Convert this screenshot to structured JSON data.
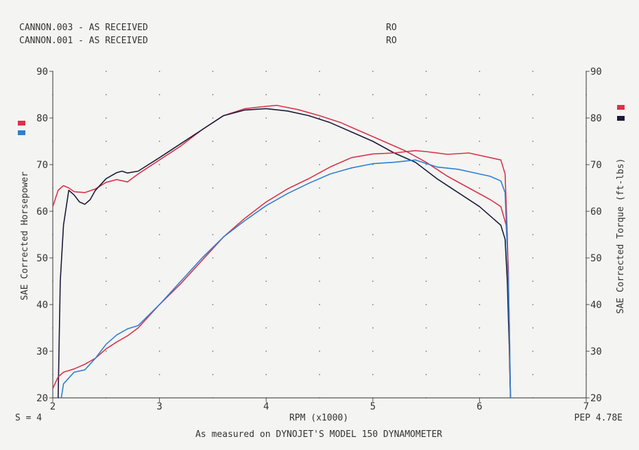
{
  "chart_data": {
    "type": "line",
    "legend": [
      {
        "label": "CANNON.003 - AS RECEIVED",
        "code": "RO",
        "color": "#d8344a"
      },
      {
        "label": "CANNON.001 - AS RECEIVED",
        "code": "RO",
        "color": "#2e7fd0"
      }
    ],
    "xlabel": "RPM (x1000)",
    "ylabel_left": "SAE Corrected Horsepower",
    "ylabel_right": "SAE Corrected Torque (ft-lbs)",
    "xlim": [
      2,
      7
    ],
    "ylim": [
      20,
      90
    ],
    "x_ticks": [
      "2",
      "3",
      "4",
      "5",
      "6",
      "7"
    ],
    "y_ticks": [
      "20",
      "30",
      "40",
      "50",
      "60",
      "70",
      "80",
      "90"
    ],
    "footer_left": "S = 4",
    "footer_right": "PEP 4.78E",
    "caption": "As measured on DYNOJET'S MODEL 150 DYNAMOMETER",
    "marker_colors": {
      "red": "#d8344a",
      "blue": "#2e7fd0",
      "black": "#1a1a3a"
    },
    "series": [
      {
        "kind": "torque",
        "run": "CANNON.003",
        "color": "#d8344a",
        "points": [
          [
            2.0,
            61
          ],
          [
            2.05,
            64.5
          ],
          [
            2.1,
            65.5
          ],
          [
            2.15,
            65
          ],
          [
            2.2,
            64.2
          ],
          [
            2.3,
            64
          ],
          [
            2.4,
            64.8
          ],
          [
            2.5,
            66.2
          ],
          [
            2.6,
            66.8
          ],
          [
            2.7,
            66.3
          ],
          [
            2.8,
            68
          ],
          [
            3.0,
            71
          ],
          [
            3.2,
            74
          ],
          [
            3.4,
            77.5
          ],
          [
            3.6,
            80.5
          ],
          [
            3.8,
            82
          ],
          [
            4.0,
            82.5
          ],
          [
            4.1,
            82.7
          ],
          [
            4.3,
            81.8
          ],
          [
            4.5,
            80.5
          ],
          [
            4.7,
            79
          ],
          [
            4.9,
            77
          ],
          [
            5.1,
            75
          ],
          [
            5.3,
            73
          ],
          [
            5.5,
            70.5
          ],
          [
            5.7,
            67.5
          ],
          [
            5.9,
            65
          ],
          [
            6.1,
            62.5
          ],
          [
            6.2,
            61
          ],
          [
            6.25,
            57
          ],
          [
            6.27,
            48
          ],
          [
            6.28,
            30
          ],
          [
            6.29,
            20
          ]
        ]
      },
      {
        "kind": "torque",
        "run": "CANNON.001",
        "color": "#1a1a3a",
        "points": [
          [
            2.05,
            20
          ],
          [
            2.07,
            45
          ],
          [
            2.1,
            57
          ],
          [
            2.15,
            64.5
          ],
          [
            2.2,
            63.5
          ],
          [
            2.25,
            62
          ],
          [
            2.3,
            61.5
          ],
          [
            2.35,
            62.5
          ],
          [
            2.4,
            64.5
          ],
          [
            2.5,
            67
          ],
          [
            2.6,
            68.3
          ],
          [
            2.65,
            68.6
          ],
          [
            2.7,
            68.2
          ],
          [
            2.8,
            68.6
          ],
          [
            3.0,
            71.5
          ],
          [
            3.2,
            74.5
          ],
          [
            3.4,
            77.5
          ],
          [
            3.6,
            80.5
          ],
          [
            3.8,
            81.7
          ],
          [
            4.0,
            82
          ],
          [
            4.2,
            81.5
          ],
          [
            4.4,
            80.5
          ],
          [
            4.6,
            79
          ],
          [
            4.8,
            77
          ],
          [
            5.0,
            75
          ],
          [
            5.2,
            72.5
          ],
          [
            5.4,
            70.5
          ],
          [
            5.6,
            67
          ],
          [
            5.8,
            64
          ],
          [
            6.0,
            61
          ],
          [
            6.1,
            59
          ],
          [
            6.2,
            57
          ],
          [
            6.24,
            54
          ],
          [
            6.26,
            45
          ],
          [
            6.28,
            30
          ],
          [
            6.29,
            20
          ]
        ]
      },
      {
        "kind": "horsepower",
        "run": "CANNON.003",
        "color": "#d8344a",
        "points": [
          [
            2.0,
            22
          ],
          [
            2.05,
            24.5
          ],
          [
            2.1,
            25.5
          ],
          [
            2.2,
            26.2
          ],
          [
            2.3,
            27.2
          ],
          [
            2.4,
            28.5
          ],
          [
            2.5,
            30.5
          ],
          [
            2.6,
            32
          ],
          [
            2.7,
            33.3
          ],
          [
            2.8,
            35
          ],
          [
            3.0,
            40
          ],
          [
            3.2,
            44.5
          ],
          [
            3.4,
            49.5
          ],
          [
            3.6,
            54.5
          ],
          [
            3.8,
            58.5
          ],
          [
            4.0,
            62
          ],
          [
            4.2,
            64.8
          ],
          [
            4.4,
            67
          ],
          [
            4.6,
            69.5
          ],
          [
            4.8,
            71.5
          ],
          [
            5.0,
            72.3
          ],
          [
            5.2,
            72.5
          ],
          [
            5.4,
            73
          ],
          [
            5.5,
            72.8
          ],
          [
            5.7,
            72.2
          ],
          [
            5.9,
            72.5
          ],
          [
            6.1,
            71.5
          ],
          [
            6.2,
            71
          ],
          [
            6.24,
            68
          ],
          [
            6.26,
            55
          ],
          [
            6.28,
            35
          ],
          [
            6.29,
            20
          ]
        ]
      },
      {
        "kind": "horsepower",
        "run": "CANNON.001",
        "color": "#2e7fd0",
        "points": [
          [
            2.08,
            20
          ],
          [
            2.1,
            23
          ],
          [
            2.2,
            25.5
          ],
          [
            2.3,
            26
          ],
          [
            2.4,
            28.5
          ],
          [
            2.5,
            31.5
          ],
          [
            2.6,
            33.5
          ],
          [
            2.7,
            34.8
          ],
          [
            2.8,
            35.5
          ],
          [
            3.0,
            40
          ],
          [
            3.2,
            45
          ],
          [
            3.4,
            50
          ],
          [
            3.6,
            54.5
          ],
          [
            3.8,
            58
          ],
          [
            4.0,
            61.2
          ],
          [
            4.2,
            63.8
          ],
          [
            4.4,
            66
          ],
          [
            4.6,
            68
          ],
          [
            4.8,
            69.3
          ],
          [
            5.0,
            70.2
          ],
          [
            5.2,
            70.5
          ],
          [
            5.4,
            71
          ],
          [
            5.6,
            69.5
          ],
          [
            5.8,
            69
          ],
          [
            6.0,
            68
          ],
          [
            6.1,
            67.5
          ],
          [
            6.2,
            66.5
          ],
          [
            6.24,
            64
          ],
          [
            6.26,
            52
          ],
          [
            6.28,
            35
          ],
          [
            6.29,
            20
          ]
        ]
      }
    ]
  }
}
